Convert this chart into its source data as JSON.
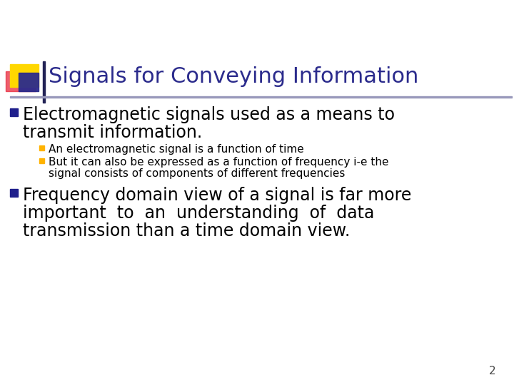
{
  "title": "Signals for Conveying Information",
  "title_color": "#2B2B8C",
  "title_fontsize": 22,
  "background_color": "#FFFFFF",
  "slide_number": "2",
  "bullet1_text_line1": "Electromagnetic signals used as a means to",
  "bullet1_text_line2": "transmit information.",
  "bullet1_color": "#000000",
  "bullet1_fontsize": 17,
  "sub_bullet1": "An electromagnetic signal is a function of time",
  "sub_bullet2_line1": "But it can also be expressed as a function of frequency i-e the",
  "sub_bullet2_line2": "signal consists of components of different frequencies",
  "sub_bullet_color": "#000000",
  "sub_bullet_fontsize": 11,
  "bullet2_line1": "Frequency domain view of a signal is far more",
  "bullet2_line2": "important  to  an  understanding  of  data",
  "bullet2_line3": "transmission than a time domain view.",
  "bullet2_color": "#000000",
  "bullet2_fontsize": 17,
  "bullet_square_color": "#1F1F8C",
  "sub_bullet_square_color": "#FFB300",
  "line_color": "#9999BB",
  "decor_yellow_color": "#FFD700",
  "decor_red_color": "#E8283C",
  "decor_blue_color": "#2B2B8C"
}
